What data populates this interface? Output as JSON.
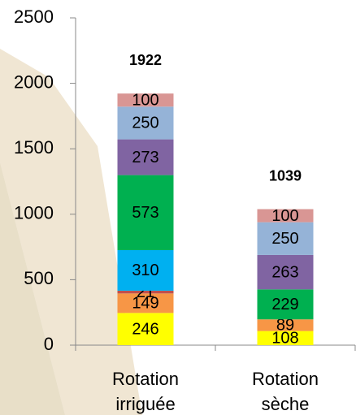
{
  "chart_data": {
    "type": "stacked_bar",
    "categories": [
      "Rotation irriguée",
      "Rotation sèche"
    ],
    "series": [
      {
        "color": "#ffff00",
        "values": [
          246,
          108
        ]
      },
      {
        "color": "#f79646",
        "values": [
          149,
          89
        ]
      },
      {
        "color": "#c0504d",
        "values": [
          21,
          null
        ]
      },
      {
        "color": "#00b0f0",
        "values": [
          310,
          null
        ]
      },
      {
        "color": "#00b050",
        "values": [
          573,
          229
        ]
      },
      {
        "color": "#8064a2",
        "values": [
          273,
          263
        ]
      },
      {
        "color": "#95b3d7",
        "values": [
          250,
          250
        ]
      },
      {
        "color": "#d99694",
        "values": [
          100,
          100
        ]
      }
    ],
    "totals": [
      1922,
      1039
    ],
    "ylim": [
      0,
      2500
    ],
    "yticks": [
      0,
      500,
      1000,
      1500,
      2000,
      2500
    ],
    "grid": false
  }
}
